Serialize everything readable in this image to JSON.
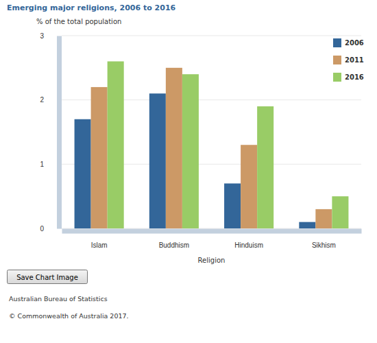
{
  "chart_data": {
    "type": "bar",
    "title": "Emerging major religions, 2006 to 2016",
    "y_label": "% of the total population",
    "x_label": "Religion",
    "categories": [
      "Islam",
      "Buddhism",
      "Hinduism",
      "Sikhism"
    ],
    "series": [
      {
        "name": "2006",
        "color": "#336699",
        "values": [
          1.7,
          2.1,
          0.7,
          0.1
        ]
      },
      {
        "name": "2011",
        "color": "#cc9966",
        "values": [
          2.2,
          2.5,
          1.3,
          0.3
        ]
      },
      {
        "name": "2016",
        "color": "#99cc66",
        "values": [
          2.6,
          2.4,
          1.9,
          0.5
        ]
      }
    ],
    "ylim": [
      0,
      3
    ],
    "yticks": [
      0,
      1,
      2,
      3
    ],
    "grid": true,
    "legend": "top-right"
  },
  "page": {
    "button": "Save Chart Image",
    "source": "Australian Bureau of Statistics",
    "copyright": "© Commonwealth of Australia 2017."
  }
}
